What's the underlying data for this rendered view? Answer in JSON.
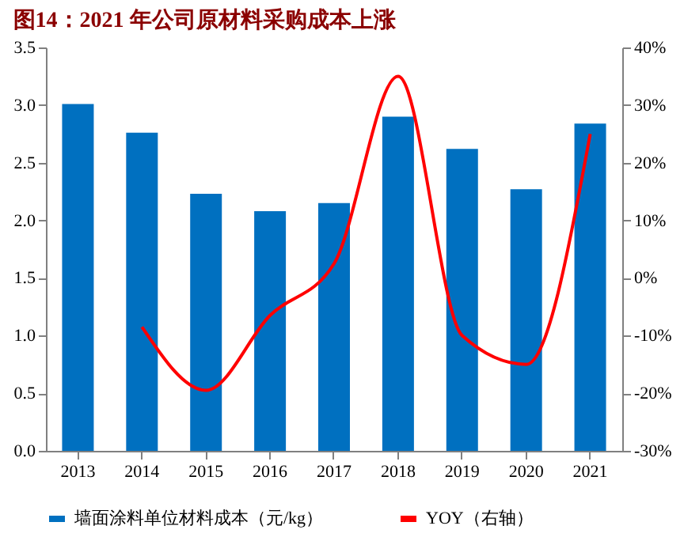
{
  "chart_data": {
    "type": "bar",
    "title": "图14：2021 年公司原材料采购成本上涨",
    "categories": [
      "2013",
      "2014",
      "2015",
      "2016",
      "2017",
      "2018",
      "2019",
      "2020",
      "2021"
    ],
    "series": [
      {
        "name": "墙面涂料单位材料成本（元/kg）",
        "color": "#0070c0",
        "values": [
          3.01,
          2.76,
          2.23,
          2.08,
          2.15,
          2.9,
          2.62,
          2.27,
          2.84
        ]
      },
      {
        "name": "YOY（右轴）",
        "type": "line",
        "axis": "y2",
        "color": "#ff0000",
        "values": [
          null,
          -8.5,
          -19.5,
          -6.5,
          2.5,
          35,
          -10,
          -15,
          25
        ]
      }
    ],
    "ylim": [
      0,
      3.5
    ],
    "yticks": [
      {
        "value": 0,
        "label": "0.0"
      },
      0.5,
      {
        "value": 1,
        "label": "1.0"
      },
      1.5,
      {
        "value": 2,
        "label": "2.0"
      },
      2.5,
      {
        "value": 3,
        "label": "3.0"
      },
      3.5
    ],
    "y2lim": [
      -30,
      40
    ],
    "y2ticks": [
      {
        "value": -30,
        "label": "-30%"
      },
      {
        "value": -20,
        "label": "-20%"
      },
      {
        "value": -10,
        "label": "-10%"
      },
      {
        "value": 0,
        "label": "0%"
      },
      {
        "value": 10,
        "label": "10%"
      },
      {
        "value": 20,
        "label": "20%"
      },
      {
        "value": 30,
        "label": "30%"
      },
      {
        "value": 40,
        "label": "40%"
      }
    ],
    "grid": false,
    "legend": "bottom",
    "marker": "none",
    "line_style": "solid"
  }
}
